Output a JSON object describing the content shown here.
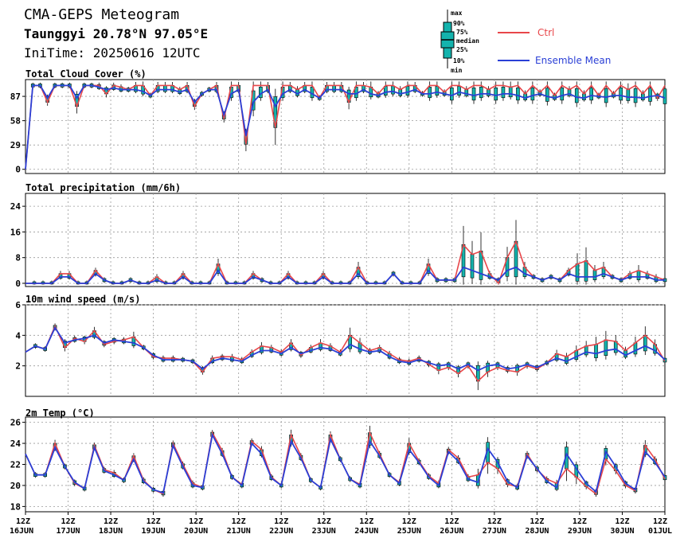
{
  "header": {
    "title": "CMA-GEPS Meteogram",
    "location": "Taunggyi 20.78°N 97.05°E",
    "init": "IniTime: 20250616 12UTC"
  },
  "legend": {
    "box_labels": [
      "max",
      "90%",
      "75%",
      "median",
      "25%",
      "10%",
      "min"
    ],
    "ctrl": "Ctrl",
    "mean": "Ensemble Mean"
  },
  "colors": {
    "ctrl": "#e8464a",
    "mean": "#2a3fd6",
    "box": "#14b3ad",
    "box_dark": "#0e6e66"
  },
  "chart_data": {
    "type": "line",
    "x_ticks": [
      {
        "top": "12Z",
        "bottom": "16JUN"
      },
      {
        "top": "12Z",
        "bottom": "17JUN"
      },
      {
        "top": "12Z",
        "bottom": "18JUN"
      },
      {
        "top": "12Z",
        "bottom": "19JUN"
      },
      {
        "top": "12Z",
        "bottom": "20JUN"
      },
      {
        "top": "12Z",
        "bottom": "21JUN"
      },
      {
        "top": "12Z",
        "bottom": "22JUN"
      },
      {
        "top": "12Z",
        "bottom": "23JUN"
      },
      {
        "top": "12Z",
        "bottom": "24JUN"
      },
      {
        "top": "12Z",
        "bottom": "25JUN"
      },
      {
        "top": "12Z",
        "bottom": "26JUN"
      },
      {
        "top": "12Z",
        "bottom": "27JUN"
      },
      {
        "top": "12Z",
        "bottom": "28JUN"
      },
      {
        "top": "12Z",
        "bottom": "29JUN"
      },
      {
        "top": "12Z",
        "bottom": "30JUN"
      },
      {
        "top": "12Z",
        "bottom": "01JUL"
      }
    ],
    "panels": [
      {
        "title": "Total Cloud Cover (%)",
        "ylim": [
          -5,
          107
        ],
        "yticks": [
          0,
          29,
          58,
          87
        ],
        "ctrl": [
          0,
          100,
          100,
          80,
          100,
          100,
          100,
          75,
          100,
          100,
          100,
          90,
          100,
          98,
          95,
          100,
          100,
          88,
          100,
          100,
          100,
          95,
          100,
          75,
          90,
          95,
          100,
          60,
          100,
          100,
          30,
          100,
          100,
          100,
          50,
          100,
          100,
          95,
          100,
          100,
          85,
          100,
          100,
          100,
          80,
          100,
          100,
          98,
          90,
          100,
          100,
          95,
          100,
          100,
          90,
          100,
          100,
          92,
          100,
          100,
          95,
          100,
          100,
          95,
          100,
          100,
          98,
          100,
          90,
          100,
          92,
          100,
          88,
          100,
          95,
          100,
          90,
          100,
          88,
          100,
          90,
          100,
          95,
          100,
          90,
          100,
          85,
          100
        ],
        "mean": [
          0,
          100,
          100,
          85,
          100,
          100,
          100,
          85,
          100,
          100,
          98,
          95,
          97,
          95,
          95,
          95,
          93,
          88,
          95,
          95,
          95,
          92,
          95,
          80,
          90,
          95,
          95,
          65,
          90,
          95,
          40,
          80,
          90,
          95,
          75,
          90,
          95,
          90,
          95,
          90,
          85,
          95,
          95,
          95,
          90,
          90,
          95,
          90,
          88,
          92,
          93,
          90,
          92,
          95,
          90,
          90,
          92,
          90,
          88,
          92,
          90,
          88,
          90,
          90,
          88,
          90,
          90,
          88,
          85,
          88,
          90,
          87,
          85,
          88,
          90,
          86,
          85,
          88,
          87,
          86,
          88,
          88,
          86,
          86,
          85,
          87,
          88,
          85
        ]
      },
      {
        "title": "Total precipitation (mm/6h)",
        "ylim": [
          -1,
          28
        ],
        "yticks": [
          0,
          8,
          16,
          24
        ],
        "ctrl": [
          0,
          0,
          0,
          0,
          3,
          3,
          0,
          0,
          4,
          1,
          0,
          0,
          1,
          0,
          0,
          2,
          0,
          0,
          3,
          0,
          0,
          0,
          6,
          0,
          0,
          0,
          3,
          1,
          0,
          0,
          3,
          0,
          0,
          0,
          3,
          0,
          0,
          0,
          5,
          0,
          0,
          0,
          3,
          0,
          0,
          0,
          6,
          1,
          1,
          1,
          12,
          9,
          10,
          3,
          0,
          8,
          13,
          5,
          2,
          1,
          2,
          1,
          4,
          6,
          7,
          4,
          5,
          2,
          1,
          3,
          4,
          3,
          2,
          1
        ],
        "mean": [
          0,
          0,
          0,
          0,
          2,
          2,
          0,
          0,
          3,
          1,
          0,
          0,
          1,
          0,
          0,
          1,
          0,
          0,
          2,
          0,
          0,
          0,
          4,
          0,
          0,
          0,
          2,
          1,
          0,
          0,
          2,
          0,
          0,
          0,
          2,
          0,
          0,
          0,
          3,
          0,
          0,
          0,
          3,
          0,
          0,
          0,
          4,
          1,
          1,
          1,
          5,
          4,
          3,
          2,
          1,
          4,
          5,
          3,
          2,
          1,
          2,
          1,
          3,
          2,
          2,
          2,
          3,
          2,
          1,
          2,
          2,
          2,
          1,
          1
        ]
      },
      {
        "title": "10m wind speed (m/s)",
        "ylim": [
          0,
          6
        ],
        "yticks": [
          2,
          4,
          6
        ],
        "ctrl": [
          2.9,
          3.3,
          3.1,
          4.6,
          3.2,
          3.8,
          3.6,
          4.3,
          3.4,
          3.6,
          3.7,
          3.9,
          3.2,
          2.6,
          2.5,
          2.5,
          2.4,
          2.3,
          1.6,
          2.5,
          2.6,
          2.6,
          2.4,
          2.9,
          3.3,
          3.2,
          2.9,
          3.5,
          2.7,
          3.2,
          3.5,
          3.3,
          2.9,
          4.0,
          3.5,
          3.0,
          3.2,
          2.8,
          2.4,
          2.3,
          2.5,
          2.1,
          1.7,
          1.9,
          1.5,
          2.0,
          1.0,
          1.6,
          1.9,
          1.7,
          1.6,
          2.0,
          1.8,
          2.2,
          2.8,
          2.6,
          3.0,
          3.3,
          3.4,
          3.7,
          3.6,
          3.0,
          3.5,
          4.0,
          3.4,
          2.3
        ],
        "mean": [
          2.9,
          3.3,
          3.1,
          4.5,
          3.5,
          3.7,
          3.8,
          4.0,
          3.5,
          3.7,
          3.6,
          3.5,
          3.2,
          2.7,
          2.4,
          2.4,
          2.4,
          2.3,
          1.8,
          2.3,
          2.5,
          2.4,
          2.3,
          2.7,
          3.0,
          3.0,
          2.8,
          3.2,
          2.8,
          3.0,
          3.2,
          3.1,
          2.8,
          3.4,
          3.1,
          2.9,
          3.0,
          2.6,
          2.3,
          2.2,
          2.4,
          2.2,
          2.0,
          2.1,
          1.8,
          2.1,
          1.7,
          2.0,
          2.1,
          1.8,
          1.9,
          2.1,
          1.9,
          2.2,
          2.5,
          2.3,
          2.6,
          2.9,
          2.8,
          3.0,
          3.1,
          2.7,
          3.0,
          3.3,
          3.0,
          2.4
        ]
      },
      {
        "title": "2m Temp (°C)",
        "ylim": [
          17.5,
          26.5
        ],
        "yticks": [
          18,
          20,
          22,
          24,
          26
        ],
        "ctrl": [
          23.0,
          21.0,
          21.0,
          24.0,
          21.8,
          20.2,
          19.7,
          23.8,
          21.5,
          21.2,
          20.5,
          22.8,
          20.5,
          19.6,
          19.2,
          24.0,
          22.0,
          20.2,
          19.8,
          25.0,
          23.3,
          20.8,
          20.1,
          24.2,
          23.4,
          20.8,
          20.0,
          24.8,
          22.8,
          20.5,
          19.8,
          24.8,
          22.5,
          20.6,
          20.1,
          25.0,
          23.0,
          21.0,
          20.3,
          24.0,
          22.3,
          20.9,
          20.2,
          23.4,
          22.6,
          20.8,
          21.0,
          22.2,
          21.6,
          20.1,
          19.9,
          23.0,
          21.5,
          20.6,
          20.2,
          21.6,
          20.8,
          19.9,
          19.2,
          22.5,
          21.4,
          20.0,
          19.5,
          23.8,
          22.5,
          20.6
        ],
        "mean": [
          23.0,
          21.0,
          21.0,
          23.6,
          21.8,
          20.3,
          19.7,
          23.6,
          21.4,
          21.0,
          20.5,
          22.5,
          20.4,
          19.6,
          19.3,
          23.8,
          21.8,
          20.0,
          19.8,
          24.8,
          23.0,
          20.8,
          20.0,
          24.0,
          23.0,
          20.7,
          20.0,
          24.2,
          22.6,
          20.5,
          19.8,
          24.4,
          22.5,
          20.6,
          20.0,
          24.2,
          22.8,
          21.0,
          20.2,
          23.4,
          22.2,
          20.8,
          20.0,
          23.2,
          22.3,
          20.6,
          20.3,
          23.5,
          22.2,
          20.4,
          19.8,
          22.8,
          21.6,
          20.4,
          19.8,
          23.0,
          21.6,
          20.2,
          19.4,
          23.2,
          21.8,
          20.2,
          19.6,
          23.2,
          22.2,
          20.8
        ]
      }
    ]
  }
}
